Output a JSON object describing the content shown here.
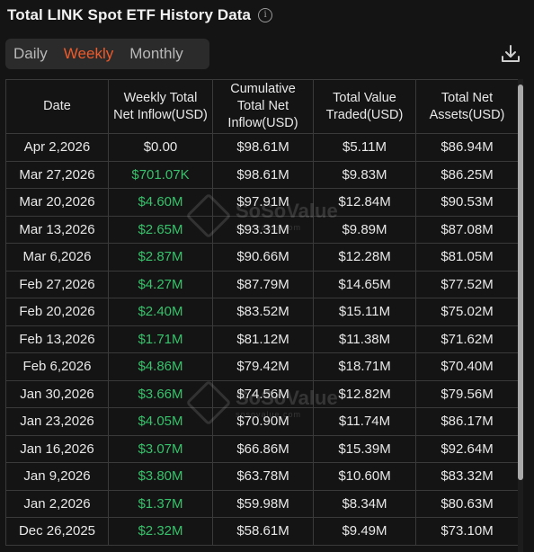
{
  "header": {
    "title": "Total LINK Spot ETF History Data",
    "info_icon": "info-icon"
  },
  "tabs": [
    {
      "label": "Daily",
      "active": false
    },
    {
      "label": "Weekly",
      "active": true
    },
    {
      "label": "Monthly",
      "active": false
    }
  ],
  "toolbar": {
    "download_icon": "download-icon"
  },
  "colors": {
    "accent": "#ef5a2a",
    "positive": "#37c26b",
    "background": "#141414"
  },
  "watermark": {
    "text": "SoSoValue",
    "sub": "sosovalue.com"
  },
  "table": {
    "headers": [
      "Date",
      "Weekly Total Net Inflow(USD)",
      "Cumulative Total Net Inflow(USD)",
      "Total Value Traded(USD)",
      "Total Net Assets(USD)"
    ],
    "rows": [
      [
        "Apr 2,2026",
        "$0.00",
        "$98.61M",
        "$5.11M",
        "$86.94M"
      ],
      [
        "Mar 27,2026",
        "$701.07K",
        "$98.61M",
        "$9.83M",
        "$86.25M"
      ],
      [
        "Mar 20,2026",
        "$4.60M",
        "$97.91M",
        "$12.84M",
        "$90.53M"
      ],
      [
        "Mar 13,2026",
        "$2.65M",
        "$93.31M",
        "$9.89M",
        "$87.08M"
      ],
      [
        "Mar 6,2026",
        "$2.87M",
        "$90.66M",
        "$12.28M",
        "$81.05M"
      ],
      [
        "Feb 27,2026",
        "$4.27M",
        "$87.79M",
        "$14.65M",
        "$77.52M"
      ],
      [
        "Feb 20,2026",
        "$2.40M",
        "$83.52M",
        "$15.11M",
        "$75.02M"
      ],
      [
        "Feb 13,2026",
        "$1.71M",
        "$81.12M",
        "$11.38M",
        "$71.62M"
      ],
      [
        "Feb 6,2026",
        "$4.86M",
        "$79.42M",
        "$18.71M",
        "$70.40M"
      ],
      [
        "Jan 30,2026",
        "$3.66M",
        "$74.56M",
        "$12.82M",
        "$79.56M"
      ],
      [
        "Jan 23,2026",
        "$4.05M",
        "$70.90M",
        "$11.74M",
        "$86.17M"
      ],
      [
        "Jan 16,2026",
        "$3.07M",
        "$66.86M",
        "$15.39M",
        "$92.64M"
      ],
      [
        "Jan 9,2026",
        "$3.80M",
        "$63.78M",
        "$10.60M",
        "$83.32M"
      ],
      [
        "Jan 2,2026",
        "$1.37M",
        "$59.98M",
        "$8.34M",
        "$80.63M"
      ],
      [
        "Dec 26,2025",
        "$2.32M",
        "$58.61M",
        "$9.49M",
        "$73.10M"
      ]
    ],
    "positive_inflow": [
      false,
      true,
      true,
      true,
      true,
      true,
      true,
      true,
      true,
      true,
      true,
      true,
      true,
      true,
      true
    ]
  }
}
